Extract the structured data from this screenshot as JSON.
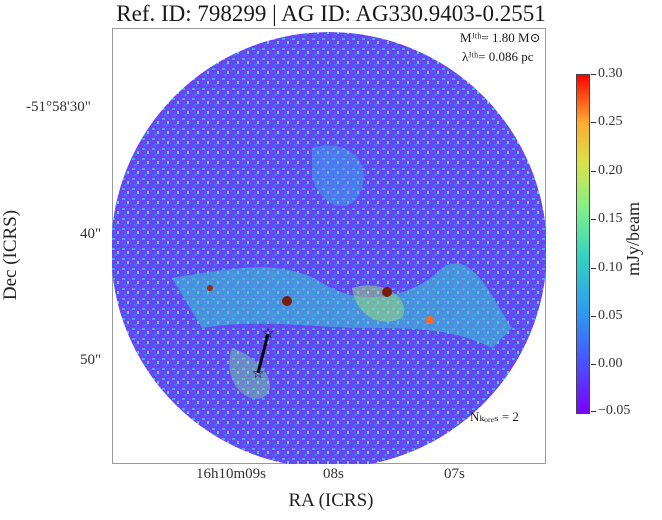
{
  "title": "Ref. ID: 798299 | AG ID: AG330.9403-0.2551",
  "annotations": {
    "mass_line": "Mᴶᵗʰ= 1.80 M⊙",
    "lambda_line": "λᴶᵗʰ= 0.086 pc",
    "ncores": "Nₖₒᵣₑₛ = 2"
  },
  "axes": {
    "x_title": "RA (ICRS)",
    "y_title": "Dec (ICRS)",
    "x_ticks": [
      "16h10m09s",
      "08s",
      "07s"
    ],
    "y_ticks": [
      "-51°58'30\"",
      "40\"",
      "50\""
    ]
  },
  "colorbar": {
    "title": "mJy/beam",
    "ticks": [
      "0.30",
      "0.25",
      "0.20",
      "0.15",
      "0.10",
      "0.05",
      "0.00",
      "−0.05"
    ]
  },
  "colors": {
    "background_noise": "#6a4df5",
    "low": "#7b00ff",
    "high": "#ff0000"
  }
}
